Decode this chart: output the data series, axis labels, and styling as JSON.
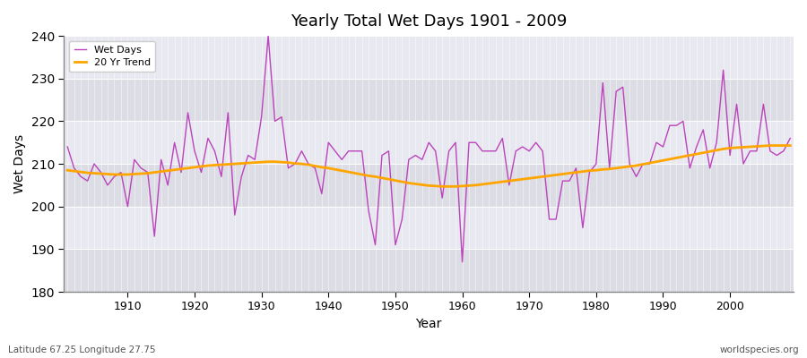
{
  "title": "Yearly Total Wet Days 1901 - 2009",
  "xlabel": "Year",
  "ylabel": "Wet Days",
  "footnote_left": "Latitude 67.25 Longitude 27.75",
  "footnote_right": "worldspecies.org",
  "ylim": [
    180,
    240
  ],
  "yticks": [
    180,
    190,
    200,
    210,
    220,
    230,
    240
  ],
  "line_color": "#BB44BB",
  "trend_color": "#FFA500",
  "fig_bg_color": "#FFFFFF",
  "plot_bg_color": "#E0E0E8",
  "band_colors": [
    "#DCDCE4",
    "#E8E8F0"
  ],
  "grid_color": "#FFFFFF",
  "years": [
    1901,
    1902,
    1903,
    1904,
    1905,
    1906,
    1907,
    1908,
    1909,
    1910,
    1911,
    1912,
    1913,
    1914,
    1915,
    1916,
    1917,
    1918,
    1919,
    1920,
    1921,
    1922,
    1923,
    1924,
    1925,
    1926,
    1927,
    1928,
    1929,
    1930,
    1931,
    1932,
    1933,
    1934,
    1935,
    1936,
    1937,
    1938,
    1939,
    1940,
    1941,
    1942,
    1943,
    1944,
    1945,
    1946,
    1947,
    1948,
    1949,
    1950,
    1951,
    1952,
    1953,
    1954,
    1955,
    1956,
    1957,
    1958,
    1959,
    1960,
    1961,
    1962,
    1963,
    1964,
    1965,
    1966,
    1967,
    1968,
    1969,
    1970,
    1971,
    1972,
    1973,
    1974,
    1975,
    1976,
    1977,
    1978,
    1979,
    1980,
    1981,
    1982,
    1983,
    1984,
    1985,
    1986,
    1987,
    1988,
    1989,
    1990,
    1991,
    1992,
    1993,
    1994,
    1995,
    1996,
    1997,
    1998,
    1999,
    2000,
    2001,
    2002,
    2003,
    2004,
    2005,
    2006,
    2007,
    2008,
    2009
  ],
  "wet_days": [
    214,
    209,
    207,
    206,
    210,
    208,
    205,
    207,
    208,
    200,
    211,
    209,
    208,
    193,
    211,
    205,
    215,
    208,
    222,
    213,
    208,
    216,
    213,
    207,
    222,
    198,
    207,
    212,
    211,
    221,
    240,
    220,
    221,
    209,
    210,
    213,
    210,
    209,
    203,
    215,
    213,
    211,
    213,
    213,
    213,
    199,
    191,
    212,
    213,
    191,
    197,
    211,
    212,
    211,
    215,
    213,
    202,
    213,
    215,
    187,
    215,
    215,
    213,
    213,
    213,
    216,
    205,
    213,
    214,
    213,
    215,
    213,
    197,
    197,
    206,
    206,
    209,
    195,
    208,
    210,
    229,
    209,
    227,
    228,
    210,
    207,
    210,
    210,
    215,
    214,
    219,
    219,
    220,
    209,
    214,
    218,
    209,
    215,
    232,
    212,
    224,
    210,
    213,
    213,
    224,
    213,
    212,
    213,
    216
  ],
  "trend_vals": [
    208.5,
    208.3,
    208.1,
    207.9,
    207.8,
    207.7,
    207.6,
    207.5,
    207.5,
    207.5,
    207.6,
    207.7,
    207.8,
    208.0,
    208.2,
    208.4,
    208.6,
    208.8,
    209.0,
    209.2,
    209.4,
    209.6,
    209.7,
    209.8,
    209.9,
    210.0,
    210.1,
    210.2,
    210.3,
    210.4,
    210.5,
    210.5,
    210.4,
    210.3,
    210.1,
    210.0,
    209.8,
    209.5,
    209.2,
    209.0,
    208.7,
    208.4,
    208.1,
    207.8,
    207.5,
    207.2,
    207.0,
    206.7,
    206.4,
    206.1,
    205.8,
    205.5,
    205.3,
    205.1,
    204.9,
    204.8,
    204.7,
    204.7,
    204.7,
    204.8,
    204.9,
    205.0,
    205.2,
    205.4,
    205.6,
    205.8,
    206.0,
    206.2,
    206.4,
    206.6,
    206.8,
    207.0,
    207.2,
    207.4,
    207.6,
    207.8,
    208.0,
    208.2,
    208.4,
    208.5,
    208.7,
    208.8,
    209.0,
    209.2,
    209.4,
    209.6,
    209.9,
    210.2,
    210.5,
    210.8,
    211.1,
    211.4,
    211.7,
    212.0,
    212.3,
    212.6,
    212.9,
    213.2,
    213.5,
    213.7,
    213.8,
    213.9,
    214.0,
    214.1,
    214.2,
    214.3,
    214.3,
    214.3,
    214.3
  ]
}
